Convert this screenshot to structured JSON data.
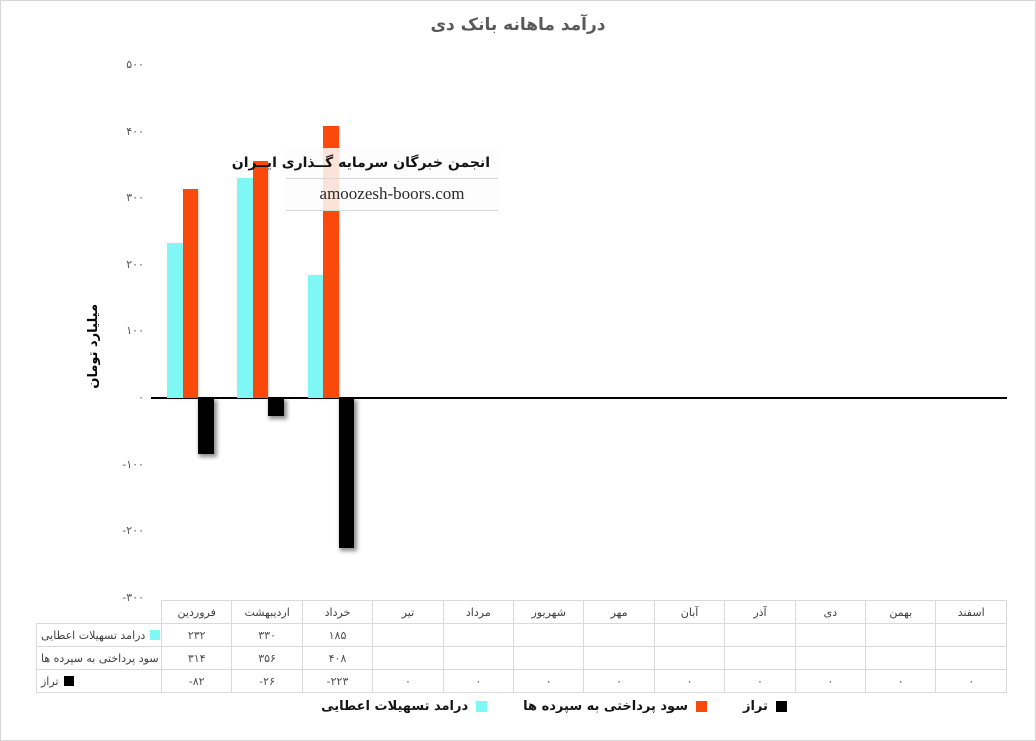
{
  "chart_data": {
    "type": "bar",
    "title": "درآمد ماهانه بانک دی",
    "ylabel": "میلیارد تومان",
    "ylim": [
      -300,
      500
    ],
    "grid": false,
    "legend_position": "bottom",
    "yticks": [
      {
        "label": "۵۰۰",
        "value": 500
      },
      {
        "label": "۴۰۰",
        "value": 400
      },
      {
        "label": "۳۰۰",
        "value": 300
      },
      {
        "label": "۲۰۰",
        "value": 200
      },
      {
        "label": "۱۰۰",
        "value": 100
      },
      {
        "label": "۰",
        "value": 0
      },
      {
        "label": "-۱۰۰",
        "value": -100
      },
      {
        "label": "-۲۰۰",
        "value": -200
      },
      {
        "label": "-۳۰۰",
        "value": -300
      }
    ],
    "categories": [
      "فروردین",
      "اردیبهشت",
      "خرداد",
      "تیر",
      "مرداد",
      "شهریور",
      "مهر",
      "آبان",
      "آذر",
      "دی",
      "بهمن",
      "اسفند"
    ],
    "series": [
      {
        "name": "درامد تسهیلات اعطایی",
        "color": "#7FF7F5",
        "values": [
          232,
          330,
          185,
          null,
          null,
          null,
          null,
          null,
          null,
          null,
          null,
          null
        ],
        "display": [
          "۲۳۲",
          "۳۳۰",
          "۱۸۵",
          "",
          "",
          "",
          "",
          "",
          "",
          "",
          "",
          ""
        ]
      },
      {
        "name": "سود پرداختی به سپرده ها",
        "color": "#F94A0C",
        "values": [
          314,
          356,
          408,
          null,
          null,
          null,
          null,
          null,
          null,
          null,
          null,
          null
        ],
        "display": [
          "۳۱۴",
          "۳۵۶",
          "۴۰۸",
          "",
          "",
          "",
          "",
          "",
          "",
          "",
          "",
          ""
        ]
      },
      {
        "name": "تراز",
        "color": "#000000",
        "values": [
          -82,
          -26,
          -223,
          0,
          0,
          0,
          0,
          0,
          0,
          0,
          0,
          0
        ],
        "display": [
          "-۸۲",
          "-۲۶",
          "-۲۲۳",
          "۰",
          "۰",
          "۰",
          "۰",
          "۰",
          "۰",
          "۰",
          "۰",
          "۰"
        ]
      }
    ]
  },
  "watermark": {
    "line1": "انجمن خبرگان سرمایه گــذاری ایــران",
    "line2": "amoozesh-boors.com"
  }
}
